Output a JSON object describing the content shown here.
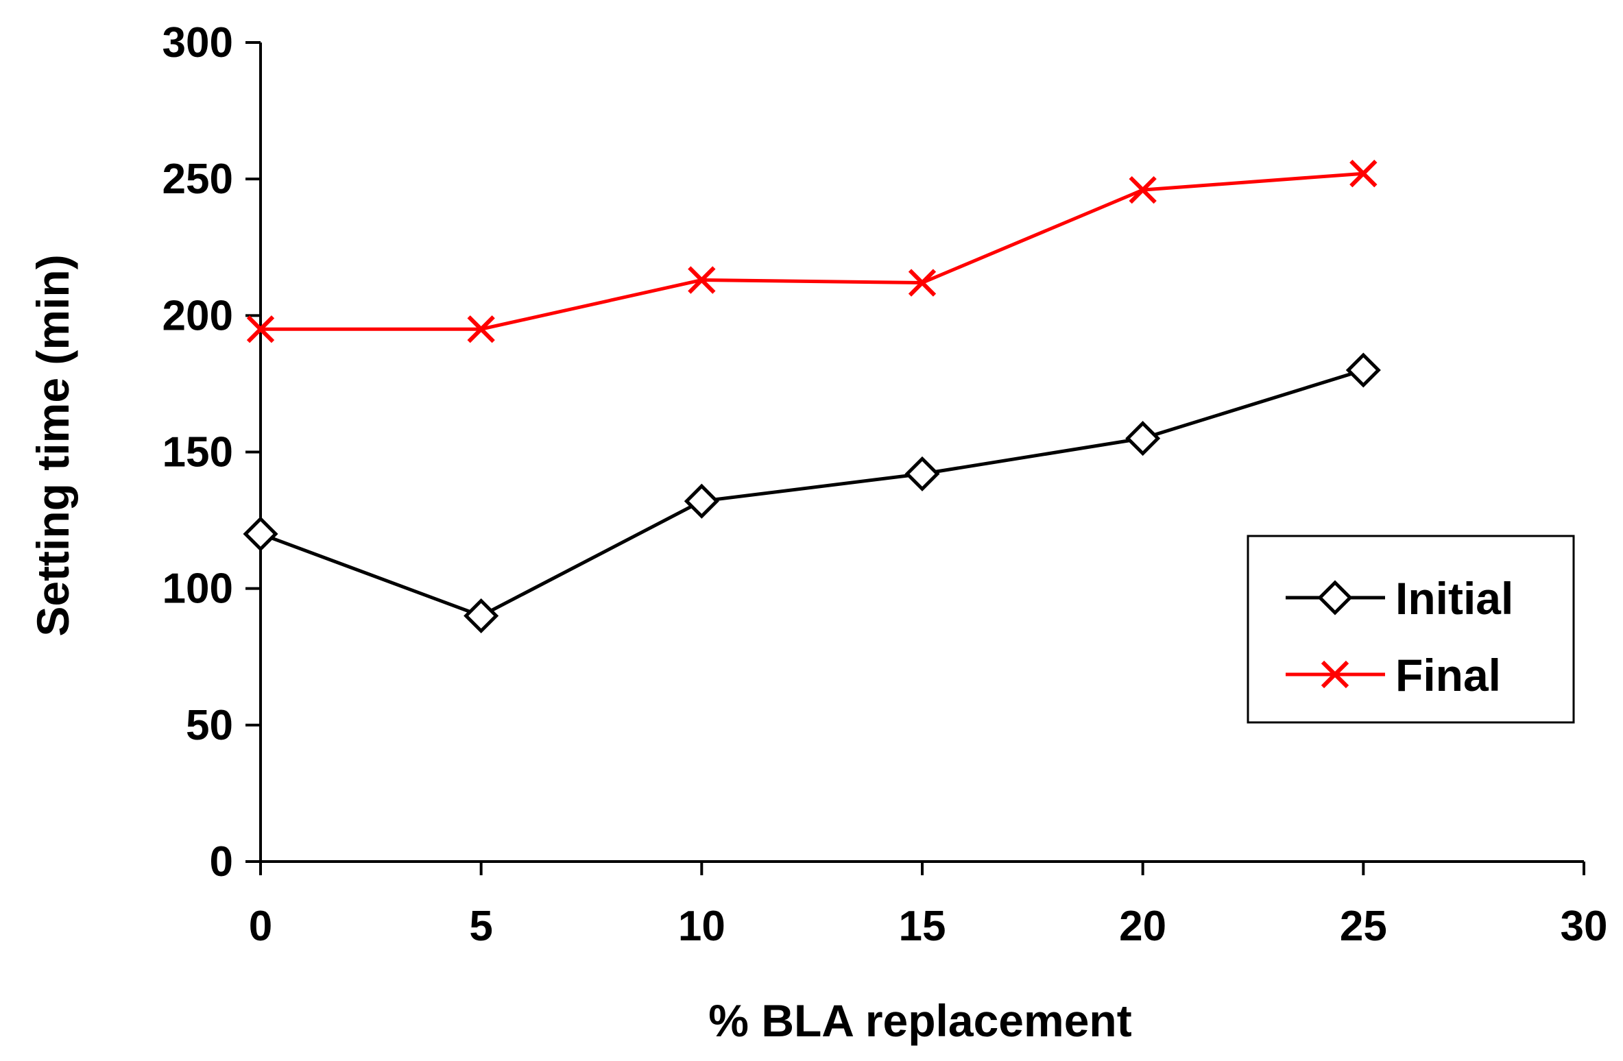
{
  "chart_data": {
    "type": "line",
    "title": "",
    "xlabel": "% BLA replacement",
    "ylabel": "Setting time (min)",
    "xlim": [
      0,
      30
    ],
    "ylim": [
      0,
      300
    ],
    "xticks": [
      0,
      5,
      10,
      15,
      20,
      25,
      30
    ],
    "yticks": [
      0,
      50,
      100,
      150,
      200,
      250,
      300
    ],
    "x": [
      0,
      5,
      10,
      15,
      20,
      25
    ],
    "grid": false,
    "legend_position": "center-right",
    "series": [
      {
        "name": "Initial",
        "values": [
          120,
          90,
          132,
          142,
          155,
          180
        ],
        "color": "#000000",
        "marker": "diamond"
      },
      {
        "name": "Final",
        "values": [
          195,
          195,
          213,
          212,
          246,
          252
        ],
        "color": "#ff0000",
        "marker": "x"
      }
    ]
  }
}
